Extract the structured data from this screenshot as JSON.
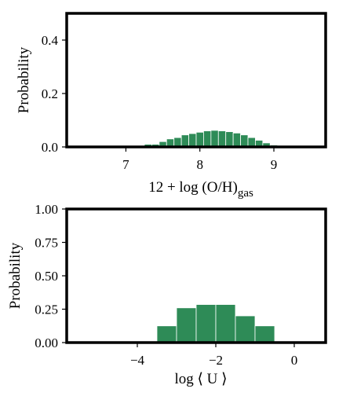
{
  "chart_data": [
    {
      "type": "bar",
      "ylabel": "Probability",
      "xlabel": "12 + log (O/H)",
      "xlabel_sub": "gas",
      "xlim": [
        6.2,
        9.7
      ],
      "ylim": [
        0,
        0.5
      ],
      "xticks": [
        7,
        8,
        9
      ],
      "xtick_labels": [
        "7",
        "8",
        "9"
      ],
      "yticks": [
        0.0,
        0.2,
        0.4
      ],
      "ytick_labels": [
        "0.0",
        "0.2",
        "0.4"
      ],
      "bar_color": "#2e8b57",
      "bin_width": 0.1,
      "bins": [
        7.3,
        7.4,
        7.5,
        7.6,
        7.7,
        7.8,
        7.9,
        8.0,
        8.1,
        8.2,
        8.3,
        8.4,
        8.5,
        8.6,
        8.7,
        8.8,
        8.9,
        9.0
      ],
      "values": [
        0.01,
        0.01,
        0.02,
        0.03,
        0.035,
        0.045,
        0.05,
        0.055,
        0.06,
        0.062,
        0.06,
        0.057,
        0.052,
        0.045,
        0.035,
        0.025,
        0.015,
        0.007
      ],
      "grid": false
    },
    {
      "type": "bar",
      "ylabel": "Probability",
      "xlabel": "log ⟨ U ⟩",
      "xlabel_sub": "",
      "xlim": [
        -5.8,
        0.8
      ],
      "ylim": [
        0,
        1.0
      ],
      "xticks": [
        -4,
        -2,
        0
      ],
      "xtick_labels": [
        "−4",
        "−2",
        "0"
      ],
      "yticks": [
        0.0,
        0.25,
        0.5,
        0.75,
        1.0
      ],
      "ytick_labels": [
        "0.00",
        "0.25",
        "0.50",
        "0.75",
        "1.00"
      ],
      "bar_color": "#2e8b57",
      "bin_width": 0.5,
      "bins": [
        -3.25,
        -2.75,
        -2.25,
        -1.75,
        -1.25,
        -0.75
      ],
      "values": [
        0.125,
        0.26,
        0.285,
        0.285,
        0.2,
        0.125
      ],
      "grid": false
    }
  ]
}
